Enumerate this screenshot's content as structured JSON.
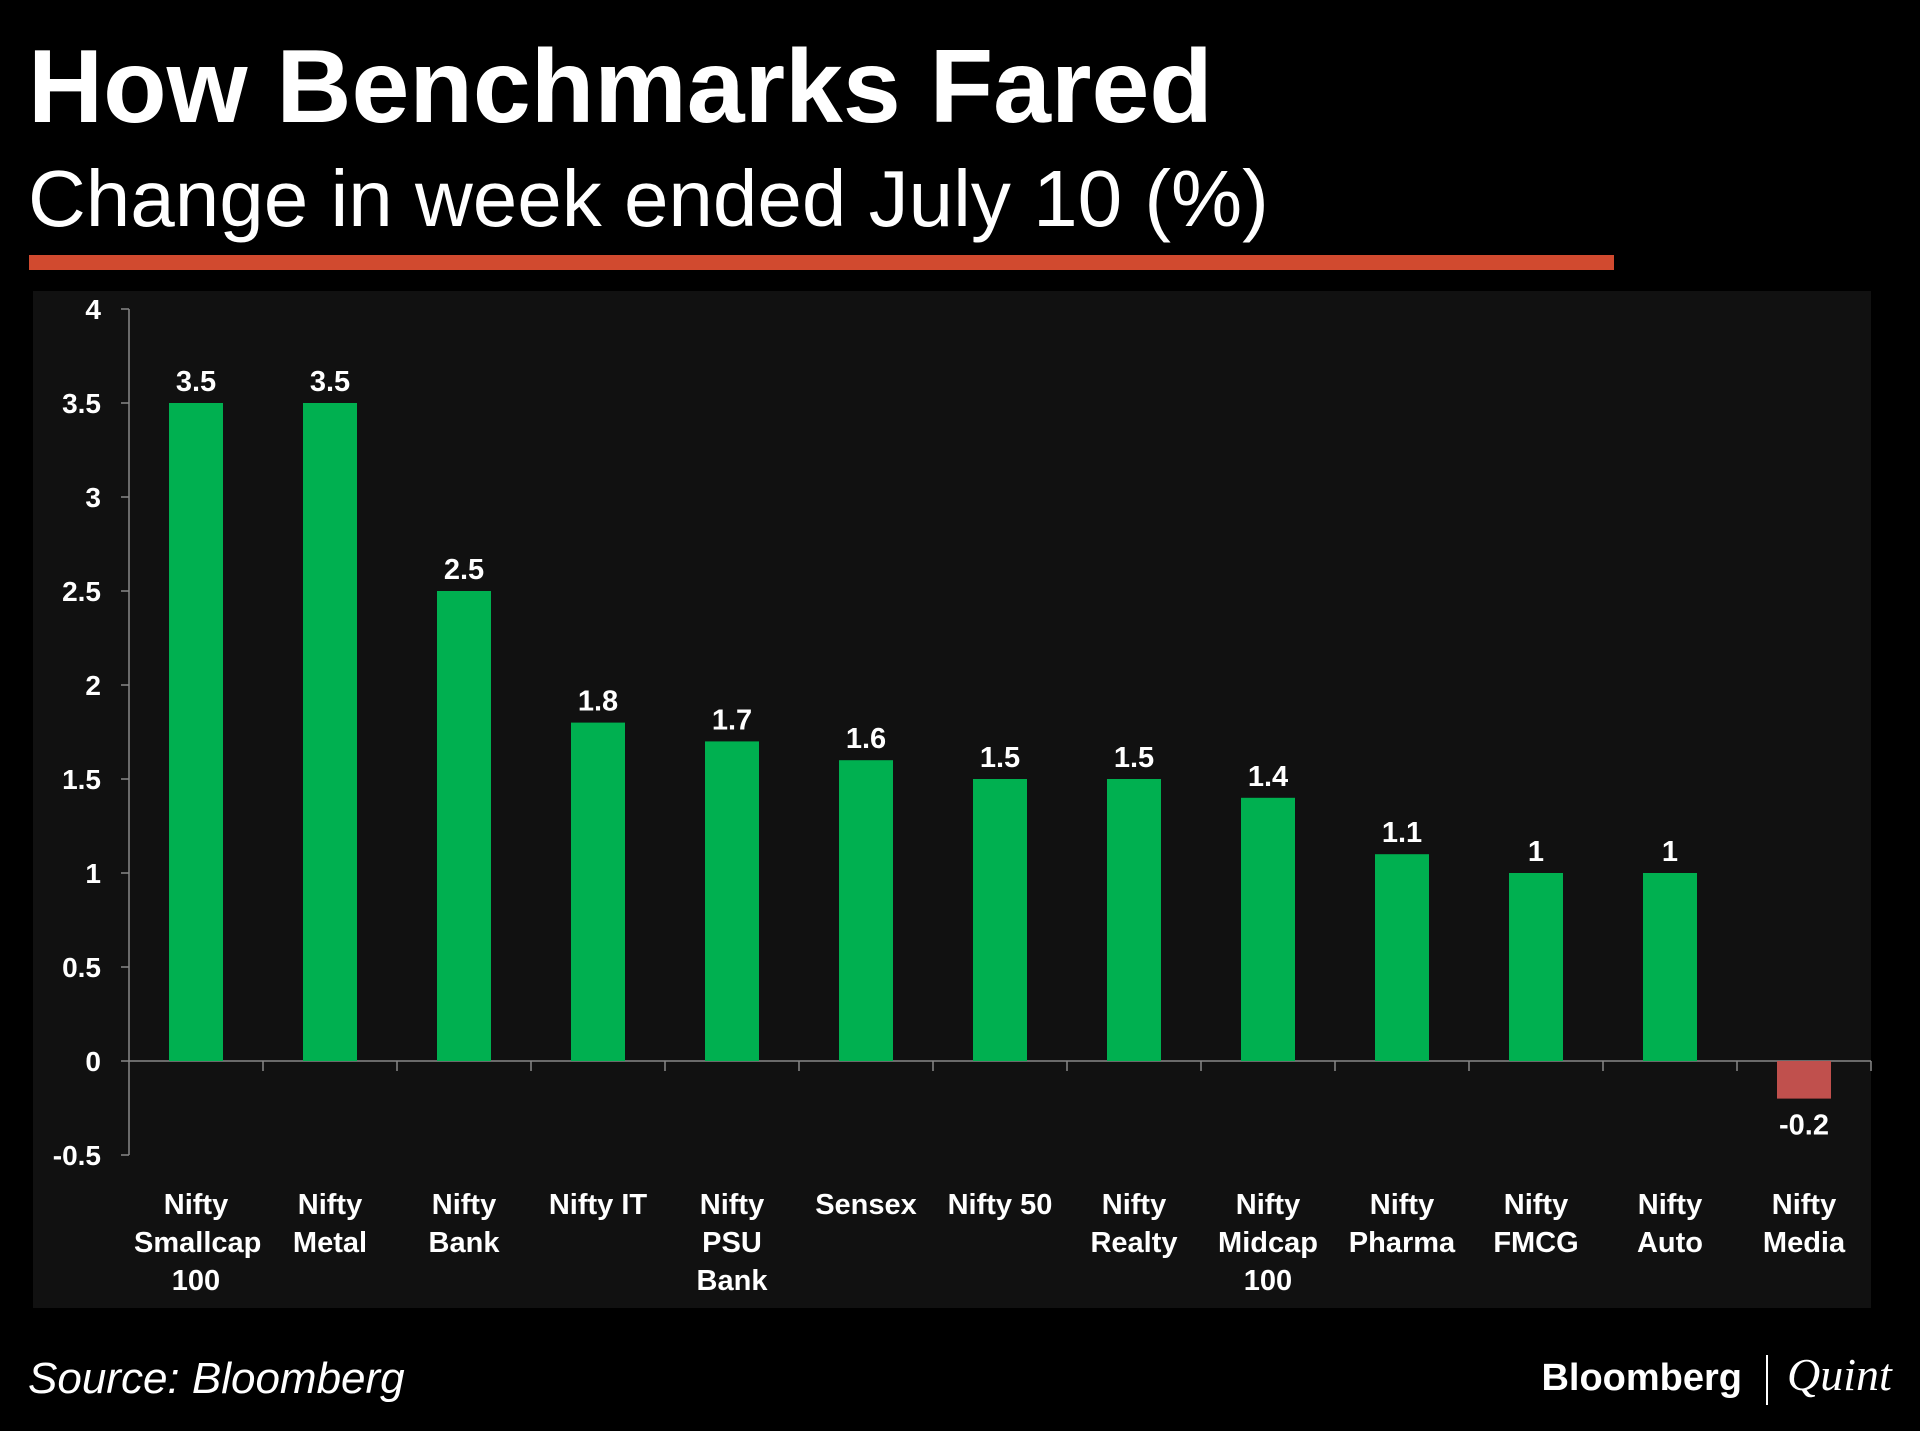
{
  "chart_data": {
    "type": "bar",
    "title": "How Benchmarks Fared",
    "subtitle": "Change in week ended July 10 (%)",
    "source": "Source: Bloomberg",
    "brand": [
      "Bloomberg",
      "Quint"
    ],
    "categories": [
      "Nifty Smallcap 100",
      "Nifty Metal",
      "Nifty Bank",
      "Nifty IT",
      "Nifty PSU Bank",
      "Sensex",
      "Nifty 50",
      "Nifty Realty",
      "Nifty Midcap 100",
      "Nifty Pharma",
      "Nifty FMCG",
      "Nifty Auto",
      "Nifty Media"
    ],
    "values": [
      3.5,
      3.5,
      2.5,
      1.8,
      1.7,
      1.6,
      1.5,
      1.5,
      1.4,
      1.1,
      1,
      1,
      -0.2
    ],
    "color": "#00b050",
    "negative_color": "#c0504d",
    "ylim": [
      -0.5,
      4
    ],
    "yticks": [
      -0.5,
      0,
      0.5,
      1,
      1.5,
      2,
      2.5,
      3,
      3.5,
      4
    ]
  }
}
